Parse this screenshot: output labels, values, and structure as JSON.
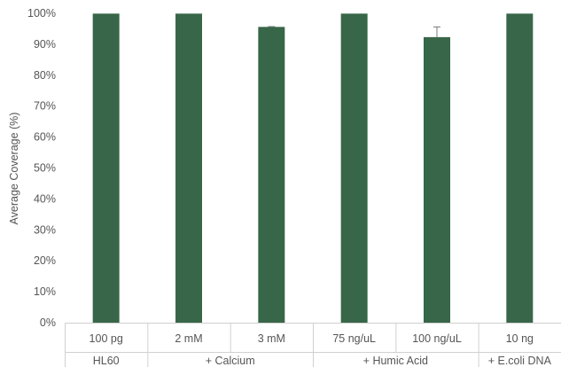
{
  "chart_data": {
    "type": "bar",
    "ylabel": "Average Coverage (%)",
    "xlabel": "",
    "ylim": [
      0,
      100
    ],
    "y_tick_step": 10,
    "y_tick_format": "percent",
    "grid": false,
    "legend": "none",
    "bar_color": "#386648",
    "error_color": "#7a7a7a",
    "categories": [
      "100 pg",
      "2 mM",
      "3 mM",
      "75 ng/uL",
      "100 ng/uL",
      "10 ng"
    ],
    "values": [
      99.9,
      99.9,
      95.6,
      99.9,
      92.3,
      99.9
    ],
    "error": [
      0,
      0,
      0.1,
      0,
      3.3,
      0
    ],
    "groups": [
      {
        "label": "HL60",
        "start": 0,
        "end": 0
      },
      {
        "label": "+ Calcium",
        "start": 1,
        "end": 2
      },
      {
        "label": "+ Humic Acid",
        "start": 3,
        "end": 4
      },
      {
        "label": "+ E.coli DNA",
        "start": 5,
        "end": 5
      }
    ]
  }
}
